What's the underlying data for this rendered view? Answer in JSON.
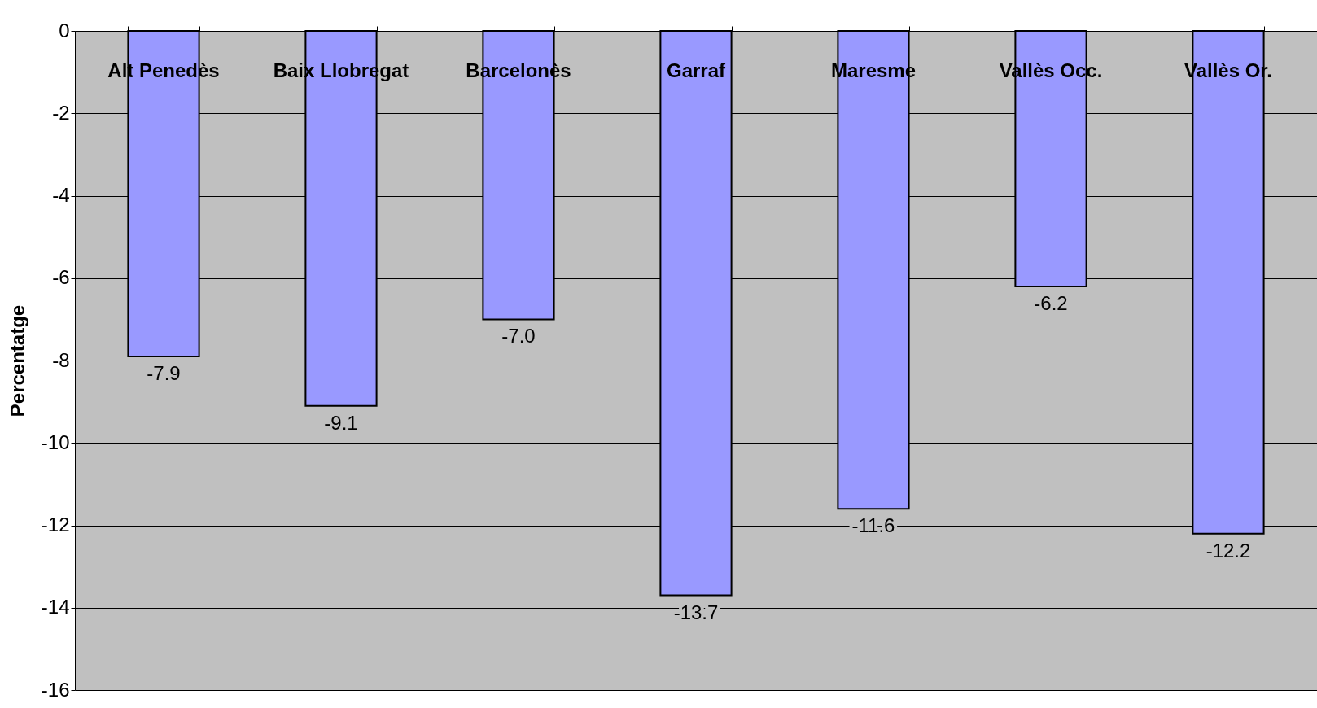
{
  "chart_data": {
    "type": "bar",
    "ylabel": "Percentatge",
    "categories": [
      "Alt Penedès",
      "Baix Llobregat",
      "Barcelonès",
      "Garraf",
      "Maresme",
      "Vallès Occ.",
      "Vallès Or."
    ],
    "values": [
      -7.9,
      -9.1,
      -7.0,
      -13.7,
      -11.6,
      -6.2,
      -12.2
    ],
    "color": "#9999ff",
    "ylim": [
      -16,
      0
    ],
    "yticks": [
      -16,
      -14,
      -12,
      -10,
      -8,
      -6,
      -4,
      -2,
      0
    ],
    "grid": "y",
    "data_labels": true,
    "value_labels": [
      "-7.9",
      "-9.1",
      "-7.0",
      "-13.7",
      "-11.6",
      "-6.2",
      "-12.2"
    ]
  }
}
